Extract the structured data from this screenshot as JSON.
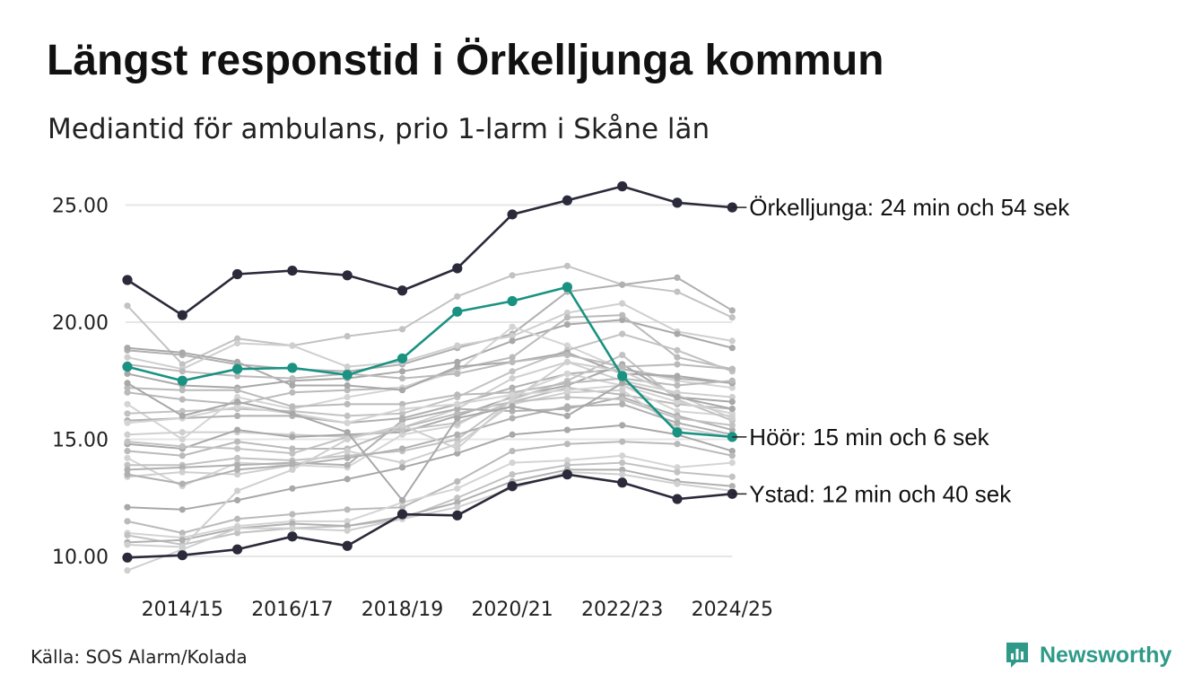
{
  "title": "Längst responstid i Örkelljunga kommun",
  "subtitle": "Mediantid för ambulans, prio 1-larm i Skåne län",
  "source": "Källa: SOS Alarm/Kolada",
  "brand": {
    "name": "Newsworthy",
    "icon": "newsworthy-logo-icon"
  },
  "colors": {
    "highlight_dark": "#2b2a3a",
    "highlight_teal": "#1a9282",
    "background_lines": "#c4c4c4",
    "grid": "#e6e6e6",
    "brand": "#2e9a87"
  },
  "chart_data": {
    "type": "line",
    "title": "Längst responstid i Örkelljunga kommun",
    "subtitle": "Mediantid för ambulans, prio 1-larm i Skåne län",
    "xlabel": "",
    "ylabel": "",
    "x": [
      "2013/14",
      "2014/15",
      "2015/16",
      "2016/17",
      "2017/18",
      "2018/19",
      "2019/20",
      "2020/21",
      "2021/22",
      "2022/23",
      "2023/24",
      "2024/25"
    ],
    "x_tick_labels": [
      "2014/15",
      "2016/17",
      "2018/19",
      "2020/21",
      "2022/23",
      "2024/25"
    ],
    "y_ticks": [
      "10.00",
      "15.00",
      "20.00",
      "25.00"
    ],
    "ylim": [
      9.3,
      26.5
    ],
    "grid": true,
    "highlighted_series": [
      {
        "name": "Örkelljunga",
        "label": "Örkelljunga: 24 min och 54 sek",
        "color": "#2b2a3a",
        "values": [
          21.8,
          20.3,
          22.05,
          22.2,
          22.0,
          21.35,
          22.3,
          24.6,
          25.2,
          25.8,
          25.1,
          24.9
        ]
      },
      {
        "name": "Höör",
        "label": "Höör: 15 min och 6 sek",
        "color": "#1a9282",
        "values": [
          18.1,
          17.5,
          18.0,
          18.05,
          17.75,
          18.45,
          20.45,
          20.9,
          21.5,
          17.7,
          15.3,
          15.1
        ]
      },
      {
        "name": "Ystad",
        "label": "Ystad: 12 min och 40 sek",
        "color": "#2b2a3a",
        "values": [
          9.95,
          10.05,
          10.3,
          10.85,
          10.45,
          11.8,
          11.75,
          13.0,
          13.5,
          13.15,
          12.45,
          12.67
        ]
      }
    ],
    "background_series": [
      {
        "values": [
          20.7,
          18.2,
          19.3,
          19.0,
          19.4,
          19.7,
          21.1,
          22.0,
          22.4,
          21.6,
          21.3,
          20.2
        ]
      },
      {
        "values": [
          18.8,
          18.6,
          18.2,
          18.0,
          17.9,
          18.2,
          18.9,
          19.5,
          21.3,
          21.6,
          21.9,
          20.5
        ]
      },
      {
        "values": [
          18.5,
          18.0,
          19.1,
          19.0,
          18.1,
          18.3,
          19.0,
          19.4,
          20.4,
          20.8,
          19.6,
          19.2
        ]
      },
      {
        "values": [
          17.8,
          17.3,
          17.2,
          17.5,
          17.6,
          17.9,
          18.3,
          19.2,
          19.9,
          20.1,
          19.5,
          18.9
        ]
      },
      {
        "values": [
          17.0,
          16.7,
          16.5,
          17.0,
          17.1,
          17.2,
          18.0,
          18.5,
          20.2,
          20.3,
          18.5,
          18.0
        ]
      },
      {
        "values": [
          16.5,
          15.0,
          16.8,
          16.3,
          16.8,
          17.2,
          17.9,
          19.8,
          19.0,
          18.0,
          17.5,
          17.2
        ]
      },
      {
        "values": [
          16.1,
          16.2,
          16.3,
          16.2,
          16.0,
          16.1,
          16.8,
          17.9,
          18.8,
          19.5,
          18.8,
          17.9
        ]
      },
      {
        "values": [
          15.8,
          15.9,
          16.0,
          16.0,
          15.7,
          15.9,
          16.5,
          17.2,
          17.8,
          18.0,
          17.6,
          17.4
        ]
      },
      {
        "values": [
          15.2,
          15.3,
          15.3,
          15.2,
          15.1,
          15.5,
          16.3,
          17.6,
          18.3,
          17.5,
          17.0,
          16.8
        ]
      },
      {
        "values": [
          14.8,
          14.6,
          15.4,
          15.1,
          15.2,
          15.3,
          16.0,
          16.8,
          17.3,
          18.2,
          16.8,
          16.6
        ]
      },
      {
        "values": [
          14.5,
          14.3,
          14.9,
          14.6,
          14.6,
          15.5,
          16.1,
          16.6,
          17.2,
          16.9,
          16.5,
          16.3
        ]
      },
      {
        "values": [
          14.2,
          13.0,
          14.0,
          13.9,
          13.8,
          15.2,
          15.6,
          16.9,
          17.8,
          17.3,
          16.2,
          16.0
        ]
      },
      {
        "values": [
          13.9,
          13.9,
          14.2,
          14.1,
          14.3,
          14.5,
          15.0,
          16.7,
          17.5,
          18.6,
          16.7,
          15.8
        ]
      },
      {
        "values": [
          13.7,
          13.8,
          13.9,
          14.0,
          13.9,
          15.8,
          16.3,
          16.2,
          16.3,
          16.8,
          16.0,
          15.4
        ]
      },
      {
        "values": [
          13.4,
          13.6,
          13.5,
          13.9,
          14.5,
          14.0,
          14.8,
          16.5,
          17.0,
          17.1,
          15.5,
          15.1
        ]
      },
      {
        "values": [
          12.1,
          12.0,
          12.4,
          12.9,
          13.3,
          13.8,
          14.4,
          15.2,
          15.4,
          15.6,
          15.2,
          14.5
        ]
      },
      {
        "values": [
          11.5,
          11.0,
          11.6,
          11.8,
          12.0,
          12.1,
          13.2,
          14.5,
          14.8,
          14.9,
          14.8,
          14.3
        ]
      },
      {
        "values": [
          11.0,
          10.8,
          11.3,
          11.5,
          11.5,
          12.3,
          12.9,
          14.0,
          14.1,
          14.3,
          13.8,
          14.0
        ]
      },
      {
        "values": [
          10.9,
          10.5,
          11.0,
          11.2,
          11.3,
          11.6,
          12.5,
          13.5,
          13.9,
          14.0,
          13.6,
          13.4
        ]
      },
      {
        "values": [
          10.6,
          10.7,
          11.2,
          11.4,
          11.3,
          11.7,
          12.3,
          13.2,
          13.7,
          13.7,
          13.2,
          13.0
        ]
      },
      {
        "values": [
          9.4,
          10.3,
          11.2,
          11.2,
          11.1,
          11.6,
          12.1,
          12.9,
          13.6,
          13.5,
          13.1,
          12.8
        ]
      },
      {
        "values": [
          18.9,
          18.7,
          18.3,
          17.3,
          17.3,
          17.1,
          18.1,
          18.3,
          18.7,
          17.8,
          17.7,
          17.4
        ]
      },
      {
        "values": [
          17.2,
          17.1,
          17.1,
          16.4,
          16.5,
          16.5,
          16.9,
          17.0,
          17.4,
          17.6,
          17.3,
          17.5
        ]
      },
      {
        "values": [
          15.7,
          15.9,
          16.4,
          16.1,
          15.7,
          16.3,
          16.5,
          16.9,
          17.1,
          17.3,
          16.6,
          16.1
        ]
      },
      {
        "values": [
          14.9,
          14.7,
          14.6,
          14.4,
          15.1,
          15.4,
          15.7,
          16.6,
          16.8,
          16.7,
          15.9,
          15.6
        ]
      },
      {
        "values": [
          13.5,
          13.1,
          13.7,
          13.9,
          14.2,
          14.6,
          15.2,
          15.9,
          16.4,
          16.5,
          15.7,
          15.2
        ]
      },
      {
        "values": [
          10.5,
          10.4,
          12.8,
          13.7,
          15.0,
          15.6,
          14.6,
          16.7,
          18.3,
          17.9,
          16.9,
          15.9
        ]
      },
      {
        "values": [
          17.4,
          16.0,
          16.6,
          16.1,
          15.3,
          12.4,
          15.9,
          16.4,
          16.0,
          17.4,
          16.8,
          16.3
        ]
      },
      {
        "values": [
          18.2,
          17.9,
          17.7,
          17.6,
          17.8,
          17.6,
          17.8,
          18.3,
          18.6,
          18.1,
          18.2,
          18.0
        ]
      }
    ],
    "end_labels": [
      "Örkelljunga: 24 min och 54 sek",
      "Höör: 15 min och 6 sek",
      "Ystad: 12 min och 40 sek"
    ]
  }
}
